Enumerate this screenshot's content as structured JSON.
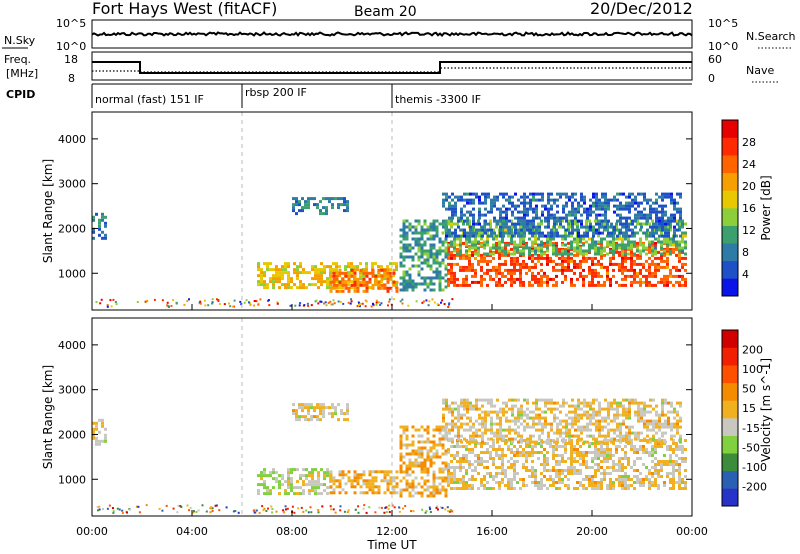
{
  "header": {
    "title": "Fort Hays West (fitACF)",
    "beam": "Beam 20",
    "date": "20/Dec/2012"
  },
  "strips": {
    "nsky_label": "N.Sky",
    "nsearch_label": "N.Search",
    "nsky_ticks": [
      "10^5",
      "10^0"
    ],
    "nsearch_ticks": [
      "10^5",
      "10^0"
    ],
    "freq_label_1": "Freq.",
    "freq_label_2": "[MHz]",
    "freq_ticks": [
      "18",
      "8"
    ],
    "nave_label": "Nave",
    "nave_ticks": [
      "60",
      "0"
    ],
    "cpid_label": "CPID",
    "cpid_segments": [
      {
        "start": 0.0,
        "label": "normal (fast) 151 IF"
      },
      {
        "start": 6.0,
        "label": "rbsp 200 IF"
      },
      {
        "start": 12.0,
        "label": "themis -3300 IF"
      }
    ]
  },
  "colors": {
    "power_scale": [
      "#0a14e6",
      "#1e50c8",
      "#2e7ba6",
      "#3c9f6e",
      "#8dcf3a",
      "#e8c800",
      "#f5a000",
      "#ff6400",
      "#ff2a00",
      "#e60000"
    ],
    "velocity_scale": [
      "#2632c8",
      "#2a60b4",
      "#3c8c3c",
      "#80d040",
      "#c8c8c0",
      "#f0b020",
      "#f58c00",
      "#ff5000",
      "#f02000",
      "#d00000"
    ]
  },
  "chart_data": [
    {
      "type": "heatmap",
      "name": "Power",
      "xlabel": "Time UT",
      "ylabel": "Slant Range [km]",
      "x_ticks": [
        "00:00",
        "04:00",
        "08:00",
        "12:00",
        "16:00",
        "20:00",
        "00:00"
      ],
      "xlim_hours": [
        0,
        24
      ],
      "ylim_km": [
        180,
        4600
      ],
      "y_ticks": [
        1000,
        2000,
        3000,
        4000
      ],
      "colorbar_label": "Power [dB]",
      "colorbar_ticks": [
        "28",
        "24",
        "20",
        "16",
        "12",
        "8",
        "4"
      ],
      "colorbar_range": [
        0,
        30
      ],
      "features": [
        {
          "t0": 0.0,
          "t1": 0.6,
          "r0": 1800,
          "r1": 2350,
          "value": 8
        },
        {
          "t0": 6.6,
          "t1": 12.2,
          "r0": 700,
          "r1": 1250,
          "value": 17
        },
        {
          "t0": 9.5,
          "t1": 12.2,
          "r0": 600,
          "r1": 1100,
          "value": 22
        },
        {
          "t0": 8.0,
          "t1": 10.2,
          "r0": 2300,
          "r1": 2700,
          "value": 8
        },
        {
          "t0": 14.2,
          "t1": 23.8,
          "r0": 700,
          "r1": 1700,
          "value": 24
        },
        {
          "t0": 14.2,
          "t1": 23.8,
          "r0": 1400,
          "r1": 2200,
          "value": 12
        },
        {
          "t0": 14.0,
          "t1": 23.5,
          "r0": 1800,
          "r1": 2800,
          "value": 6
        },
        {
          "t0": 12.3,
          "t1": 14.2,
          "r0": 600,
          "r1": 2200,
          "value": 10
        }
      ]
    },
    {
      "type": "heatmap",
      "name": "Velocity",
      "xlabel": "Time UT",
      "ylabel": "Slant Range [km]",
      "x_ticks": [
        "00:00",
        "04:00",
        "08:00",
        "12:00",
        "16:00",
        "20:00",
        "00:00"
      ],
      "xlim_hours": [
        0,
        24
      ],
      "ylim_km": [
        180,
        4600
      ],
      "y_ticks": [
        1000,
        2000,
        3000,
        4000
      ],
      "colorbar_label": "Velocity [m s^-1]",
      "colorbar_ticks": [
        "200",
        "100",
        "50",
        "15",
        "-15",
        "-50",
        "-100",
        "-200"
      ],
      "colorbar_range": [
        -250,
        250
      ],
      "features": [
        {
          "t0": 0.0,
          "t1": 0.6,
          "r0": 1800,
          "r1": 2350,
          "value": 0
        },
        {
          "t0": 6.6,
          "t1": 9.5,
          "r0": 700,
          "r1": 1250,
          "value": -40
        },
        {
          "t0": 9.5,
          "t1": 12.2,
          "r0": 700,
          "r1": 1200,
          "value": 40
        },
        {
          "t0": 8.0,
          "t1": 10.2,
          "r0": 2300,
          "r1": 2700,
          "value": 0
        },
        {
          "t0": 14.2,
          "t1": 23.8,
          "r0": 800,
          "r1": 1900,
          "value": 0
        },
        {
          "t0": 14.0,
          "t1": 23.5,
          "r0": 1800,
          "r1": 2800,
          "value": 0
        },
        {
          "t0": 12.3,
          "t1": 14.2,
          "r0": 600,
          "r1": 2200,
          "value": 30
        }
      ]
    }
  ]
}
